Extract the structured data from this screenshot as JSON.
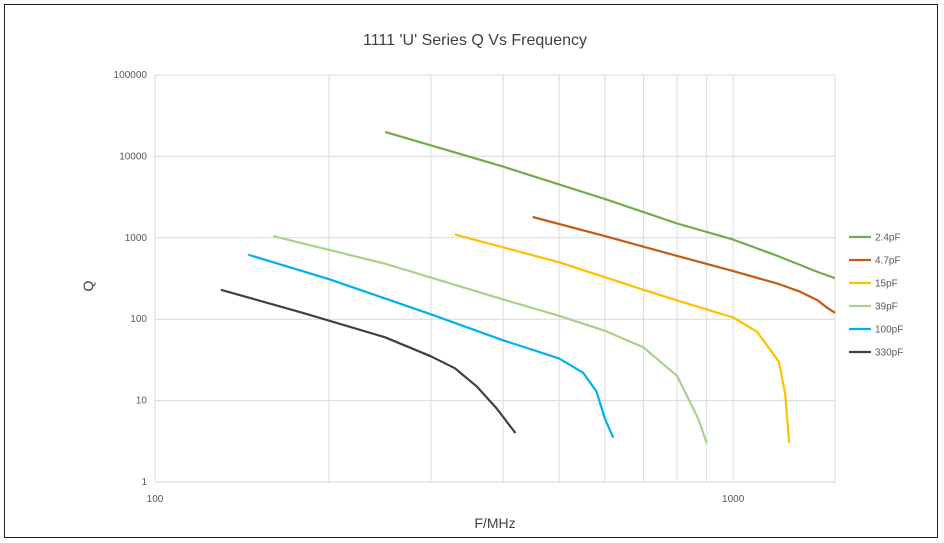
{
  "chart_data": {
    "type": "line",
    "title": "1111 'U' Series Q Vs Frequency",
    "xlabel": "F/MHz",
    "ylabel": "Q",
    "xscale": "log",
    "yscale": "log",
    "xlim": [
      100,
      1500
    ],
    "ylim": [
      1,
      100000
    ],
    "x_tick_labels": [
      {
        "value": 100,
        "label": "100"
      },
      {
        "value": 1000,
        "label": "1000"
      }
    ],
    "x_minor_gridlines": [
      200,
      300,
      400,
      500,
      600,
      700,
      800,
      900
    ],
    "y_tick_labels": [
      {
        "value": 1,
        "label": "1"
      },
      {
        "value": 10,
        "label": "10"
      },
      {
        "value": 100,
        "label": "100"
      },
      {
        "value": 1000,
        "label": "1000"
      },
      {
        "value": 10000,
        "label": "10000"
      },
      {
        "value": 100000,
        "label": "100000"
      }
    ],
    "grid": true,
    "legend_position": "right",
    "series": [
      {
        "name": "2.4pF",
        "color": "#70AD47",
        "x": [
          250,
          400,
          600,
          800,
          1000,
          1200,
          1400,
          1500
        ],
        "y": [
          20000,
          7500,
          3000,
          1500,
          950,
          590,
          380,
          320
        ]
      },
      {
        "name": "4.7pF",
        "color": "#C55A11",
        "x": [
          450,
          600,
          800,
          1000,
          1200,
          1300,
          1400,
          1450,
          1500
        ],
        "y": [
          1800,
          1050,
          600,
          390,
          270,
          220,
          170,
          140,
          120
        ]
      },
      {
        "name": "15pF",
        "color": "#FFC000",
        "x": [
          330,
          500,
          700,
          800,
          1000,
          1100,
          1200,
          1230,
          1250
        ],
        "y": [
          1100,
          500,
          230,
          170,
          105,
          70,
          30,
          12,
          3
        ]
      },
      {
        "name": "39pF",
        "color": "#A9D18E",
        "x": [
          160,
          250,
          400,
          500,
          600,
          700,
          800,
          870,
          900
        ],
        "y": [
          1050,
          480,
          175,
          110,
          72,
          45,
          20,
          6,
          3
        ]
      },
      {
        "name": "100pF",
        "color": "#00B0F0",
        "x": [
          145,
          200,
          300,
          400,
          500,
          550,
          580,
          600,
          620
        ],
        "y": [
          620,
          310,
          115,
          55,
          33,
          22,
          13,
          6,
          3.5
        ]
      },
      {
        "name": "330pF",
        "color": "#404040",
        "x": [
          130,
          180,
          250,
          300,
          330,
          360,
          390,
          420
        ],
        "y": [
          230,
          120,
          60,
          35,
          25,
          15,
          8,
          4
        ]
      }
    ]
  }
}
